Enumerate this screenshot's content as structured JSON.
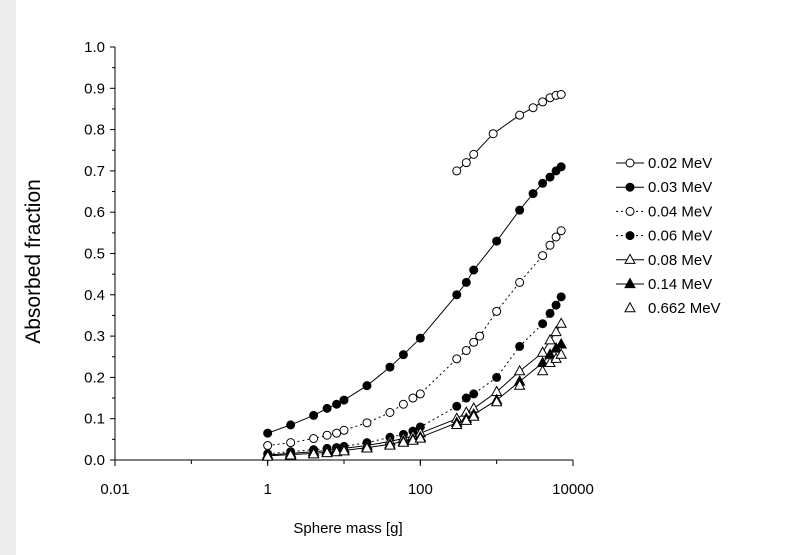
{
  "chart_data": {
    "type": "scatter",
    "title": "",
    "xlabel": "Sphere mass [g]",
    "ylabel": "Absorbed fraction",
    "xscale": "log",
    "xlim": [
      0.01,
      10000
    ],
    "ylim": [
      0.0,
      1.0
    ],
    "x_ticks": [
      {
        "value": 0.01,
        "label": "0.01"
      },
      {
        "value": 1,
        "label": "1"
      },
      {
        "value": 100,
        "label": "100"
      },
      {
        "value": 10000,
        "label": "10000"
      }
    ],
    "y_ticks": [
      {
        "value": 0.0,
        "label": "0.0"
      },
      {
        "value": 0.1,
        "label": "0.1"
      },
      {
        "value": 0.2,
        "label": "0.2"
      },
      {
        "value": 0.3,
        "label": "0.3"
      },
      {
        "value": 0.4,
        "label": "0.4"
      },
      {
        "value": 0.5,
        "label": "0.5"
      },
      {
        "value": 0.6,
        "label": "0.6"
      },
      {
        "value": 0.7,
        "label": "0.7"
      },
      {
        "value": 0.8,
        "label": "0.8"
      },
      {
        "value": 0.9,
        "label": "0.9"
      },
      {
        "value": 1.0,
        "label": "1.0"
      }
    ],
    "grid": false,
    "legend_position": "right",
    "series": [
      {
        "name": "0.02 MeV",
        "marker": "circle",
        "filled": false,
        "line": "solid",
        "x": [
          300,
          400,
          500,
          900,
          2000,
          3000,
          4000,
          5000,
          6000,
          7000
        ],
        "y": [
          0.7,
          0.72,
          0.74,
          0.79,
          0.835,
          0.853,
          0.867,
          0.877,
          0.883,
          0.885
        ]
      },
      {
        "name": "0.03 MeV",
        "marker": "circle",
        "filled": true,
        "line": "solid",
        "x": [
          1,
          2,
          4,
          6,
          8,
          10,
          20,
          40,
          60,
          100,
          300,
          400,
          500,
          1000,
          2000,
          3000,
          4000,
          5000,
          6000,
          7000
        ],
        "y": [
          0.065,
          0.085,
          0.108,
          0.125,
          0.135,
          0.145,
          0.18,
          0.225,
          0.255,
          0.295,
          0.4,
          0.43,
          0.46,
          0.53,
          0.605,
          0.645,
          0.67,
          0.685,
          0.7,
          0.71
        ]
      },
      {
        "name": "0.04 MeV",
        "marker": "circle",
        "filled": false,
        "line": "dotted",
        "x": [
          1,
          2,
          4,
          6,
          8,
          10,
          20,
          40,
          60,
          80,
          100,
          300,
          400,
          500,
          600,
          1000,
          2000,
          4000,
          5000,
          6000,
          7000
        ],
        "y": [
          0.035,
          0.042,
          0.052,
          0.06,
          0.065,
          0.072,
          0.09,
          0.115,
          0.135,
          0.15,
          0.16,
          0.245,
          0.265,
          0.285,
          0.3,
          0.36,
          0.43,
          0.495,
          0.52,
          0.54,
          0.555
        ]
      },
      {
        "name": "0.06 MeV",
        "marker": "circle",
        "filled": true,
        "line": "dotted",
        "x": [
          1,
          2,
          4,
          6,
          8,
          10,
          20,
          40,
          60,
          80,
          100,
          300,
          400,
          500,
          1000,
          2000,
          4000,
          5000,
          6000,
          7000
        ],
        "y": [
          0.015,
          0.02,
          0.025,
          0.028,
          0.03,
          0.033,
          0.042,
          0.055,
          0.062,
          0.07,
          0.08,
          0.13,
          0.15,
          0.16,
          0.2,
          0.275,
          0.33,
          0.355,
          0.375,
          0.395
        ]
      },
      {
        "name": "0.08 MeV",
        "marker": "triangle",
        "filled": false,
        "line": "solid",
        "x": [
          1,
          2,
          4,
          6,
          8,
          10,
          20,
          40,
          60,
          80,
          100,
          300,
          400,
          500,
          1000,
          2000,
          4000,
          5000,
          6000,
          7000
        ],
        "y": [
          0.012,
          0.016,
          0.02,
          0.023,
          0.026,
          0.028,
          0.035,
          0.045,
          0.052,
          0.058,
          0.065,
          0.1,
          0.115,
          0.125,
          0.165,
          0.215,
          0.26,
          0.29,
          0.31,
          0.33
        ]
      },
      {
        "name": "0.14 MeV",
        "marker": "triangle",
        "filled": true,
        "line": "solid",
        "x": [
          1,
          2,
          4,
          6,
          8,
          10,
          20,
          40,
          60,
          80,
          100,
          300,
          400,
          500,
          1000,
          2000,
          4000,
          5000,
          6000,
          7000
        ],
        "y": [
          0.01,
          0.013,
          0.016,
          0.019,
          0.021,
          0.023,
          0.03,
          0.038,
          0.045,
          0.05,
          0.055,
          0.09,
          0.1,
          0.11,
          0.145,
          0.19,
          0.235,
          0.255,
          0.27,
          0.28
        ]
      },
      {
        "name": "0.662 MeV",
        "marker": "triangle",
        "filled": false,
        "line": "none",
        "x": [
          1,
          2,
          4,
          6,
          8,
          10,
          20,
          40,
          60,
          80,
          100,
          300,
          400,
          500,
          1000,
          2000,
          4000,
          5000,
          6000,
          7000
        ],
        "y": [
          0.008,
          0.011,
          0.014,
          0.017,
          0.019,
          0.021,
          0.028,
          0.035,
          0.042,
          0.047,
          0.052,
          0.085,
          0.095,
          0.105,
          0.14,
          0.18,
          0.215,
          0.235,
          0.245,
          0.255
        ]
      }
    ]
  }
}
